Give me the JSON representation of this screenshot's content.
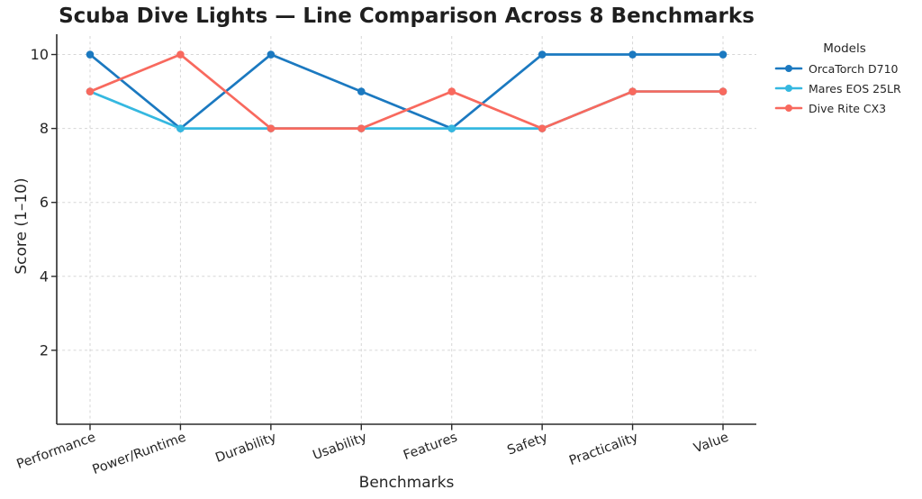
{
  "legend": {
    "title": "Models"
  },
  "chart_data": {
    "type": "line",
    "title": "Scuba Dive Lights — Line Comparison Across 8 Benchmarks",
    "xlabel": "Benchmarks",
    "ylabel": "Score (1–10)",
    "categories": [
      "Performance",
      "Power/Runtime",
      "Durability",
      "Usability",
      "Features",
      "Safety",
      "Practicality",
      "Value"
    ],
    "series": [
      {
        "name": "OrcaTorch D710",
        "color": "#1b79c0",
        "values": [
          10,
          8,
          10,
          9,
          8,
          10,
          10,
          10
        ]
      },
      {
        "name": "Mares EOS 25LR",
        "color": "#35b8e0",
        "values": [
          9,
          8,
          8,
          8,
          8,
          8,
          9,
          9
        ]
      },
      {
        "name": "Dive Rite CX3",
        "color": "#f8695e",
        "values": [
          9,
          10,
          8,
          8,
          9,
          8,
          9,
          9
        ]
      }
    ],
    "ylim": [
      0,
      10.5
    ],
    "yticks": [
      2,
      4,
      6,
      8,
      10
    ],
    "grid": true,
    "grid_style": "dashed",
    "legend_position": "right",
    "axis_color": "#2b2b2b",
    "grid_color": "#d6d6d6"
  }
}
